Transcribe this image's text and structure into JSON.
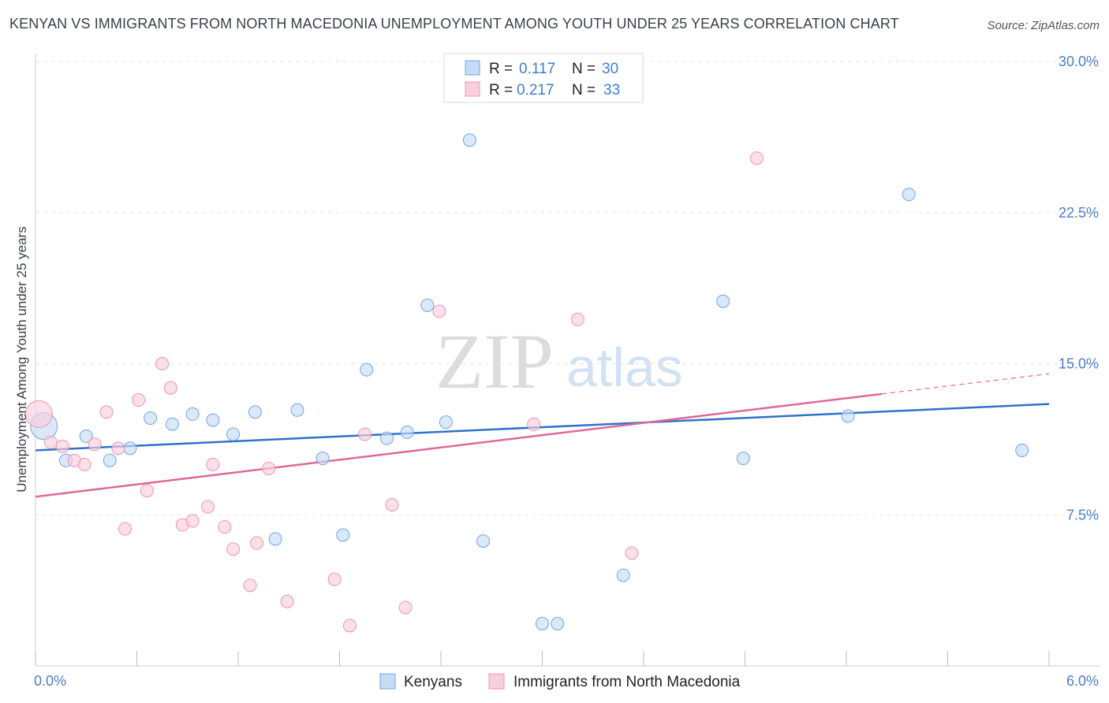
{
  "chart_data": {
    "type": "scatter",
    "title": "KENYAN VS IMMIGRANTS FROM NORTH MACEDONIA UNEMPLOYMENT AMONG YOUTH UNDER 25 YEARS CORRELATION CHART",
    "source": "Source: ZipAtlas.com",
    "xlabel": "",
    "ylabel": "Unemployment Among Youth under 25 years",
    "xlim": [
      0,
      6.0
    ],
    "ylim": [
      0,
      30.0
    ],
    "x_tick_labels": [
      "0.0%",
      "6.0%"
    ],
    "y_ticks": [
      7.5,
      15.0,
      22.5,
      30.0
    ],
    "y_tick_labels": [
      "7.5%",
      "15.0%",
      "22.5%",
      "30.0%"
    ],
    "legend": {
      "r_label": "R =",
      "n_label": "N =",
      "entries": [
        {
          "r": "0.117",
          "n": "30"
        },
        {
          "r": "0.217",
          "n": "33"
        }
      ]
    },
    "watermark": {
      "zip": "ZIP",
      "atlas": "atlas"
    },
    "series": [
      {
        "name": "Kenyans",
        "color": "#6ea6e8",
        "fill": "#c6dbf5",
        "line_color": "#2e72c9",
        "trend": {
          "x0": 0.0,
          "y0": 10.7,
          "x1": 6.0,
          "y1": 13.0
        },
        "points": [
          {
            "x": 0.05,
            "y": 11.9,
            "big": true
          },
          {
            "x": 0.18,
            "y": 10.2
          },
          {
            "x": 0.3,
            "y": 11.4
          },
          {
            "x": 0.44,
            "y": 10.2
          },
          {
            "x": 0.56,
            "y": 10.8
          },
          {
            "x": 0.68,
            "y": 12.3
          },
          {
            "x": 0.81,
            "y": 12.0
          },
          {
            "x": 0.93,
            "y": 12.5
          },
          {
            "x": 1.05,
            "y": 12.2
          },
          {
            "x": 1.17,
            "y": 11.5
          },
          {
            "x": 1.3,
            "y": 12.6
          },
          {
            "x": 1.42,
            "y": 6.3
          },
          {
            "x": 1.55,
            "y": 12.7
          },
          {
            "x": 1.7,
            "y": 10.3
          },
          {
            "x": 1.82,
            "y": 6.5
          },
          {
            "x": 1.96,
            "y": 14.7
          },
          {
            "x": 2.08,
            "y": 11.3
          },
          {
            "x": 2.2,
            "y": 11.6
          },
          {
            "x": 2.32,
            "y": 17.9
          },
          {
            "x": 2.43,
            "y": 12.1
          },
          {
            "x": 2.57,
            "y": 26.1
          },
          {
            "x": 2.65,
            "y": 6.2
          },
          {
            "x": 3.0,
            "y": 2.1
          },
          {
            "x": 3.09,
            "y": 2.1
          },
          {
            "x": 3.48,
            "y": 4.5
          },
          {
            "x": 4.07,
            "y": 18.1
          },
          {
            "x": 4.19,
            "y": 10.3
          },
          {
            "x": 4.81,
            "y": 12.4
          },
          {
            "x": 5.17,
            "y": 23.4
          },
          {
            "x": 5.84,
            "y": 10.7
          }
        ]
      },
      {
        "name": "Immigrants from North Macedonia",
        "color": "#ee93b2",
        "fill": "#f9cfdd",
        "line_color": "#e0679a",
        "trend": {
          "x0": 0.0,
          "y0": 8.4,
          "x1": 5.01,
          "y1": 13.5
        },
        "trend_ext": {
          "x0": 5.01,
          "y0": 13.5,
          "x1": 6.0,
          "y1": 14.5
        },
        "points": [
          {
            "x": 0.02,
            "y": 12.5,
            "big": true
          },
          {
            "x": 0.09,
            "y": 11.1
          },
          {
            "x": 0.16,
            "y": 10.9
          },
          {
            "x": 0.23,
            "y": 10.2
          },
          {
            "x": 0.29,
            "y": 10.0
          },
          {
            "x": 0.35,
            "y": 11.0
          },
          {
            "x": 0.42,
            "y": 12.6
          },
          {
            "x": 0.49,
            "y": 10.8
          },
          {
            "x": 0.53,
            "y": 6.8
          },
          {
            "x": 0.61,
            "y": 13.2
          },
          {
            "x": 0.66,
            "y": 8.7
          },
          {
            "x": 0.75,
            "y": 15.0
          },
          {
            "x": 0.8,
            "y": 13.8
          },
          {
            "x": 0.87,
            "y": 7.0
          },
          {
            "x": 0.93,
            "y": 7.2
          },
          {
            "x": 1.02,
            "y": 7.9
          },
          {
            "x": 1.05,
            "y": 10.0
          },
          {
            "x": 1.12,
            "y": 6.9
          },
          {
            "x": 1.17,
            "y": 5.8
          },
          {
            "x": 1.27,
            "y": 4.0
          },
          {
            "x": 1.31,
            "y": 6.1
          },
          {
            "x": 1.38,
            "y": 9.8
          },
          {
            "x": 1.49,
            "y": 3.2
          },
          {
            "x": 1.77,
            "y": 4.3
          },
          {
            "x": 1.86,
            "y": 2.0
          },
          {
            "x": 1.95,
            "y": 11.5
          },
          {
            "x": 2.11,
            "y": 8.0
          },
          {
            "x": 2.19,
            "y": 2.9
          },
          {
            "x": 2.39,
            "y": 17.6
          },
          {
            "x": 2.95,
            "y": 12.0
          },
          {
            "x": 3.21,
            "y": 17.2
          },
          {
            "x": 3.53,
            "y": 5.6
          },
          {
            "x": 4.27,
            "y": 25.2
          }
        ]
      }
    ]
  }
}
